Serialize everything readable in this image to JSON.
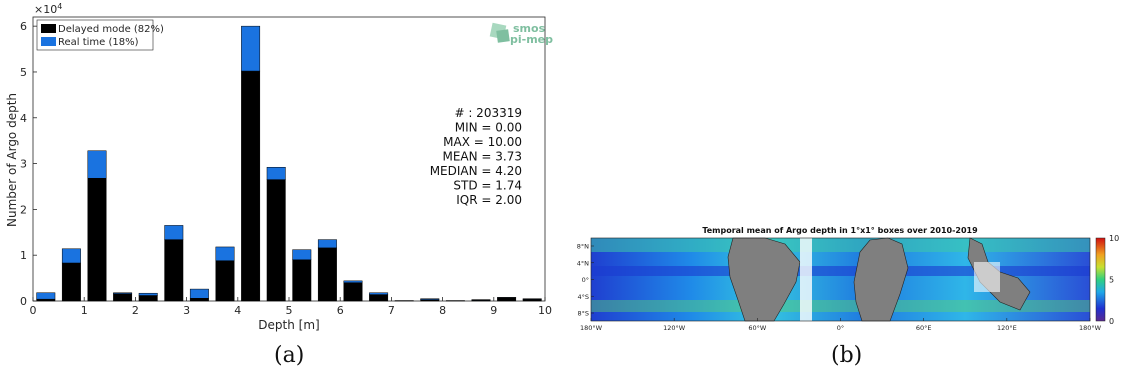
{
  "chart_data": [
    {
      "type": "bar",
      "stacked": true,
      "xlabel": "Depth [m]",
      "ylabel": "Number of Argo depth",
      "y_multiplier_label": "×10",
      "y_multiplier_exp": "4",
      "xlim": [
        0,
        10
      ],
      "ylim": [
        0,
        62000
      ],
      "x_ticks": [
        "0",
        "1",
        "2",
        "3",
        "4",
        "5",
        "6",
        "7",
        "8",
        "9",
        "10"
      ],
      "y_ticks": [
        "0",
        "1",
        "2",
        "3",
        "4",
        "5",
        "6"
      ],
      "bin_centers": [
        0.25,
        0.75,
        1.25,
        1.75,
        2.25,
        2.75,
        3.25,
        3.75,
        4.25,
        4.75,
        5.25,
        5.75,
        6.25,
        6.75,
        7.25,
        7.75,
        8.25,
        8.75,
        9.25,
        9.75
      ],
      "series": [
        {
          "name": "Delayed mode (82%)",
          "color": "#000000",
          "values": [
            400,
            8300,
            26800,
            1600,
            1200,
            13400,
            600,
            8800,
            50200,
            26500,
            9000,
            11600,
            4000,
            1400,
            100,
            300,
            100,
            200,
            700,
            400
          ]
        },
        {
          "name": "Real time (18%)",
          "color": "#1a73e0",
          "values": [
            1400,
            3100,
            6000,
            200,
            500,
            3100,
            2000,
            3000,
            9800,
            2700,
            2200,
            1800,
            400,
            400,
            0,
            200,
            0,
            100,
            100,
            100
          ]
        }
      ],
      "stats": [
        "# : 203319",
        "MIN = 0.00",
        "MAX =  10.00",
        "MEAN = 3.73",
        "MEDIAN = 4.20",
        "STD = 1.74",
        "IQR = 2.00"
      ],
      "logo": [
        "smos",
        "pi-mep"
      ],
      "legend_position": "top-left"
    },
    {
      "type": "heatmap",
      "title": "Temporal mean of Argo depth in 1°x1° boxes over 2010-2019",
      "x_ticks": [
        "180°W",
        "120°W",
        "60°W",
        "0°",
        "60°E",
        "120°E",
        "180°W"
      ],
      "y_ticks": [
        "8°N",
        "4°N",
        "0°",
        "4°S",
        "8°S"
      ],
      "colorbar_ticks": [
        "10",
        "5",
        "0"
      ],
      "colorbar_range": [
        0,
        10
      ]
    }
  ],
  "captions": {
    "a": "(a)",
    "b": "(b)"
  }
}
